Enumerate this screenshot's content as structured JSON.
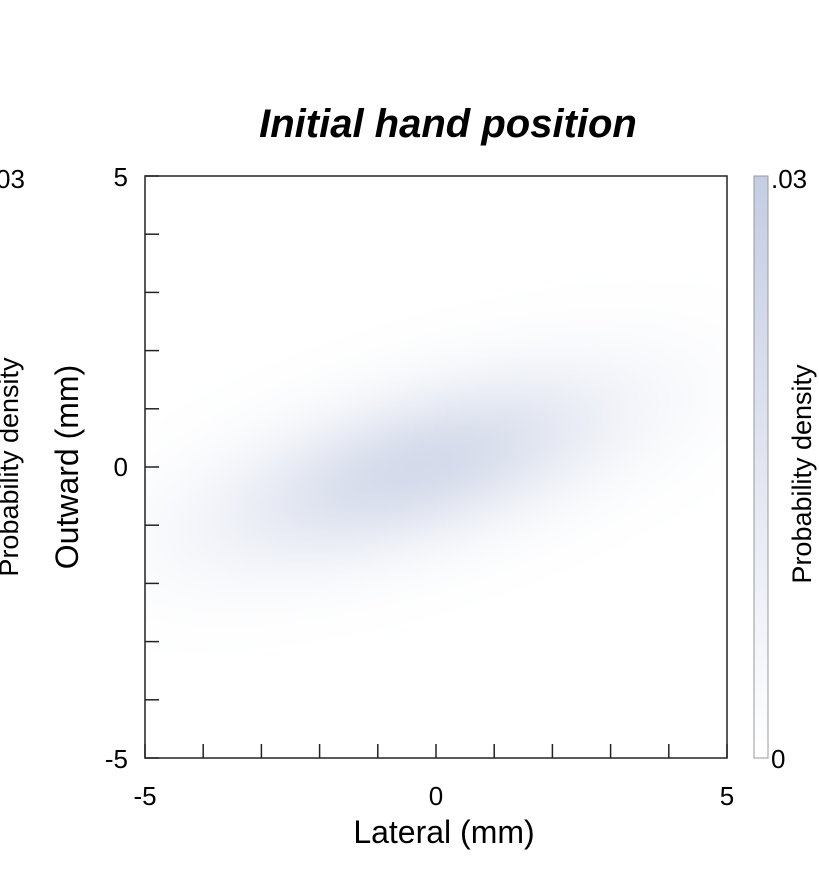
{
  "chart_data": {
    "type": "heatmap",
    "title": "Initial hand position",
    "xlabel": "Lateral (mm)",
    "ylabel": "Outward (mm)",
    "xlim": [
      -5,
      5
    ],
    "ylim": [
      -5,
      5
    ],
    "x_ticks": [
      "-5",
      "0",
      "5"
    ],
    "y_ticks": [
      "-5",
      "0",
      "5"
    ],
    "colorbar": {
      "label": "Probability density",
      "min_label": "0",
      "max_label": ".03",
      "range": [
        0,
        0.03
      ],
      "color_low": "#ffffff",
      "color_high": "#c5cde3"
    },
    "distribution": {
      "kind": "bivariate-gaussian",
      "mean": [
        -0.3,
        0.0
      ],
      "sd_major": 2.4,
      "sd_minor": 0.85,
      "angle_deg": 17,
      "peak_density": 0.022
    },
    "clipped_left_panel": {
      "ylabel": "Probability density",
      "tick_label": "03"
    }
  }
}
